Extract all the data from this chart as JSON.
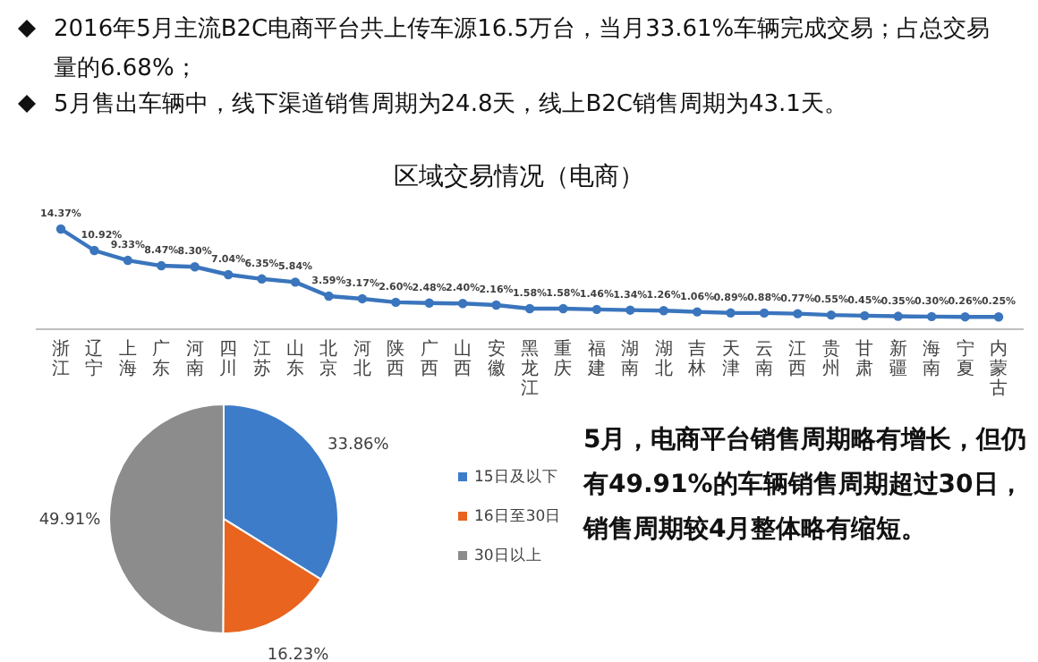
{
  "chart_data": [
    {
      "type": "line",
      "title": "区域交易情况（电商）",
      "annotations": [
        "2016年5月主流B2C电商平台共上传车源16.5万台，当月33.61%车辆完成交易；占总交易量的6.68%；",
        "5月售出车辆中，线下渠道销售周期为24.8天，线上B2C销售周期为43.1天。"
      ],
      "categories": [
        "浙江",
        "辽宁",
        "上海",
        "广东",
        "河南",
        "四川",
        "江苏",
        "山东",
        "北京",
        "河北",
        "陕西",
        "广西",
        "山西",
        "安徽",
        "黑龙江",
        "重庆",
        "福建",
        "湖南",
        "湖北",
        "吉林",
        "天津",
        "云南",
        "江西",
        "贵州",
        "甘肃",
        "新疆",
        "海南",
        "宁夏",
        "内蒙古"
      ],
      "values": [
        14.37,
        10.92,
        9.33,
        8.47,
        8.3,
        7.04,
        6.35,
        5.84,
        3.59,
        3.17,
        2.6,
        2.48,
        2.4,
        2.16,
        1.58,
        1.58,
        1.46,
        1.34,
        1.26,
        1.06,
        0.89,
        0.88,
        0.77,
        0.55,
        0.45,
        0.35,
        0.3,
        0.26,
        0.25
      ],
      "value_labels": [
        "14.37%",
        "10.92%",
        "9.33%",
        "8.47%",
        "8.30%",
        "7.04%",
        "6.35%",
        "5.84%",
        "3.59%",
        "3.17%",
        "2.60%",
        "2.48%",
        "2.40%",
        "2.16%",
        "1.58%",
        "1.58%",
        "1.46%",
        "1.34%",
        "1.26%",
        "1.06%",
        "0.89%",
        "0.88%",
        "0.77%",
        "0.55%",
        "0.45%",
        "0.35%",
        "0.30%",
        "0.26%",
        "0.25%"
      ],
      "color": "#3a75bd",
      "marker": "circle"
    },
    {
      "type": "pie",
      "annotations": [
        "5月，电商平台销售周期略有增长，但仍有49.91%的车辆销售周期超过30日，销售周期较4月整体略有缩短。"
      ],
      "categories": [
        "15日及以下",
        "16日至30日",
        "30日以上"
      ],
      "values": [
        33.86,
        16.23,
        49.91
      ],
      "value_labels": [
        "33.86%",
        "16.23%",
        "49.91%"
      ],
      "colors": [
        "#3d7cc9",
        "#e8641f",
        "#8c8c8c"
      ],
      "legend": "right"
    }
  ]
}
